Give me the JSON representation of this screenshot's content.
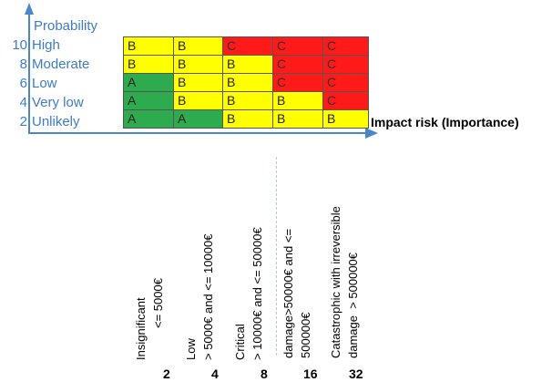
{
  "axis": {
    "y_title": "Probability",
    "x_title": "Impact risk (Importance)"
  },
  "probability": [
    {
      "value": "10",
      "label": "High"
    },
    {
      "value": "8",
      "label": "Moderate"
    },
    {
      "value": "6",
      "label": "Low"
    },
    {
      "value": "4",
      "label": "Very low"
    },
    {
      "value": "2",
      "label": "Unlikely"
    }
  ],
  "matrix": [
    [
      "B",
      "B",
      "C",
      "C",
      "C"
    ],
    [
      "B",
      "B",
      "B",
      "C",
      "C"
    ],
    [
      "A",
      "B",
      "B",
      "C",
      "C"
    ],
    [
      "A",
      "B",
      "B",
      "B",
      "C"
    ],
    [
      "A",
      "A",
      "B",
      "B",
      "B"
    ]
  ],
  "colors": {
    "A": "#2eaa4f",
    "B": "#ffff00",
    "C": "#ff1a1a",
    "axis": "#4a86c8"
  },
  "impact": [
    {
      "value": "2",
      "line1": "Insignificant",
      "line2": "<= 5000€"
    },
    {
      "value": "4",
      "line1": "Low",
      "line2": "> 5000€ and <= 10000€"
    },
    {
      "value": "8",
      "line1": "Critical",
      "line2": "> 10000€ and <= 50000€"
    },
    {
      "value": "16",
      "line1": "damage>50000€ and <=",
      "line2": "500000€"
    },
    {
      "value": "32",
      "line1": "Catastrophic with irreversible",
      "line2": "damage  > 500000€"
    }
  ]
}
